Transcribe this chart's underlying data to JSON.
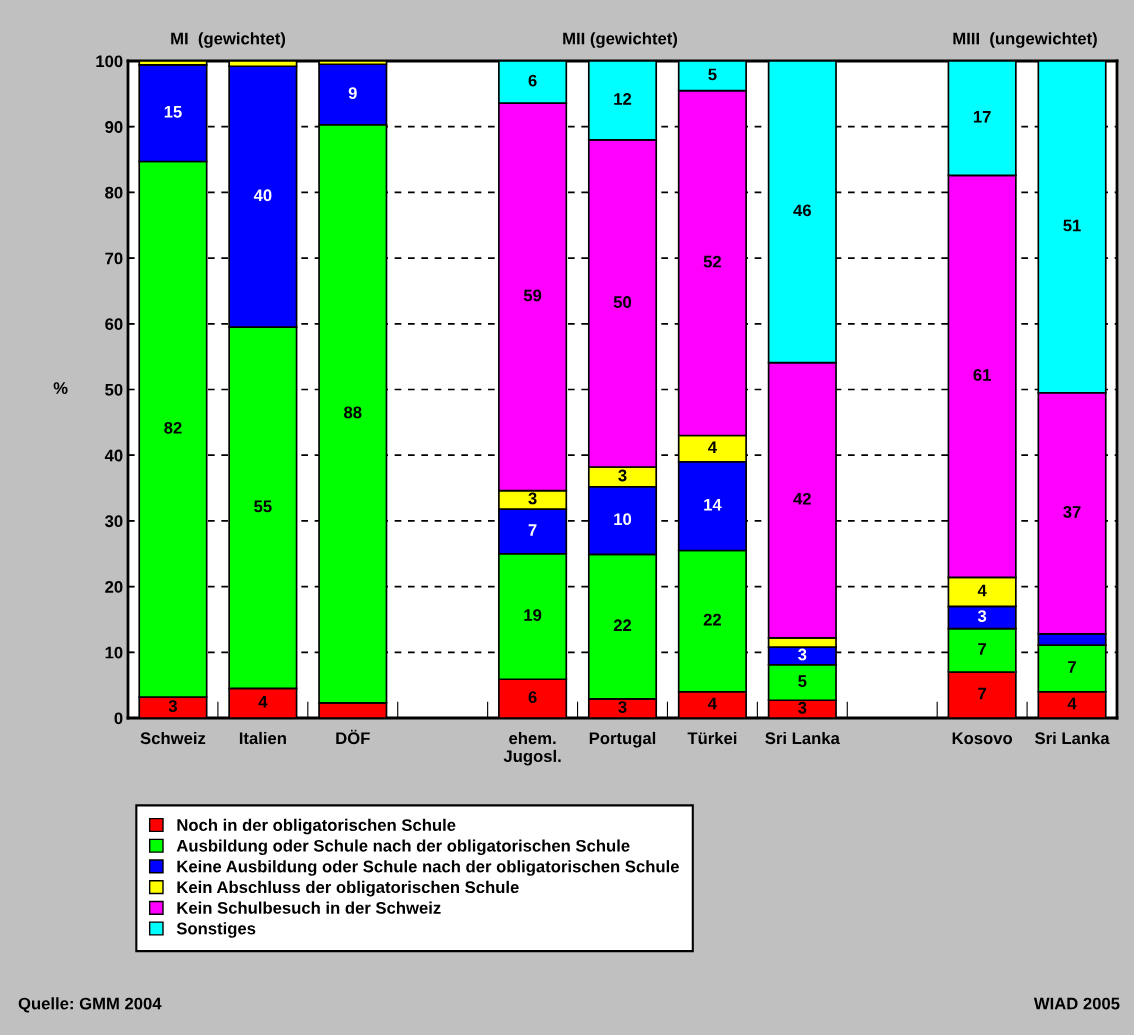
{
  "chart_data": {
    "type": "bar",
    "stacked": true,
    "ylabel": "%",
    "categories": [
      "Schweiz",
      "Italien",
      "DÖF",
      null,
      "ehem.\nJugosl.",
      "Portugal",
      "Türkei",
      "Sri Lanka",
      null,
      "Kosovo",
      "Sri Lanka"
    ],
    "series": [
      {
        "name": "Noch in der obligatorischen Schule",
        "color": "#ff0000",
        "values": [
          3.2,
          4.5,
          2.3,
          null,
          5.9,
          2.9,
          4,
          2.7,
          null,
          7,
          4
        ],
        "value_labels": [
          "3",
          "4",
          null,
          null,
          "6",
          "3",
          "4",
          "3",
          null,
          "7",
          "4"
        ]
      },
      {
        "name": "Ausbildung oder Schule nach der obligatorischen Schule",
        "color": "#00ff00",
        "values": [
          81.5,
          55,
          88,
          null,
          19.1,
          22,
          21.5,
          5.4,
          null,
          6.6,
          7.1
        ],
        "value_labels": [
          "82",
          "55",
          "88",
          null,
          "19",
          "22",
          "22",
          "5",
          null,
          "7",
          "7"
        ]
      },
      {
        "name": "Keine Ausbildung oder Schule nach der obligatorischen Schule",
        "color": "#0000ff",
        "values": [
          14.7,
          39.7,
          9.2,
          null,
          6.8,
          10.3,
          13.5,
          2.7,
          null,
          3.4,
          1.7
        ],
        "value_labels": [
          "15",
          "40",
          "9",
          null,
          "7",
          "10",
          "14",
          "3",
          null,
          "3",
          null
        ]
      },
      {
        "name": "Kein Abschluss der obligatorischen Schule",
        "color": "#ffff00",
        "values": [
          0.6,
          0.8,
          0.5,
          null,
          2.8,
          3,
          4,
          1.4,
          null,
          4.4,
          null
        ],
        "value_labels": [
          null,
          null,
          null,
          null,
          "3",
          "3",
          "4",
          null,
          null,
          "4",
          null
        ]
      },
      {
        "name": "Kein Schulbesuch in der Schweiz",
        "color": "#ff00ff",
        "values": [
          null,
          null,
          null,
          null,
          59,
          49.8,
          52.5,
          41.9,
          null,
          61.2,
          36.7
        ],
        "value_labels": [
          null,
          null,
          null,
          null,
          "59",
          "50",
          "52",
          "42",
          null,
          "61",
          "37"
        ]
      },
      {
        "name": "Sonstiges",
        "color": "#00ffff",
        "values": [
          null,
          null,
          null,
          null,
          6.4,
          12,
          4.5,
          45.9,
          null,
          17.4,
          50.5
        ],
        "value_labels": [
          null,
          null,
          null,
          null,
          "6",
          "12",
          "5",
          "46",
          null,
          "17",
          "51"
        ]
      }
    ],
    "ylim": [
      0,
      100
    ],
    "yticks": [
      0,
      10,
      20,
      30,
      40,
      50,
      60,
      70,
      80,
      90,
      100
    ],
    "grid": "y",
    "legend": "bottom",
    "annotations": [
      "MI  (gewichtet)",
      "MII (gewichtet)",
      "MIII  (ungewichtet)",
      "Quelle: GMM 2004",
      "WIAD 2005"
    ]
  }
}
